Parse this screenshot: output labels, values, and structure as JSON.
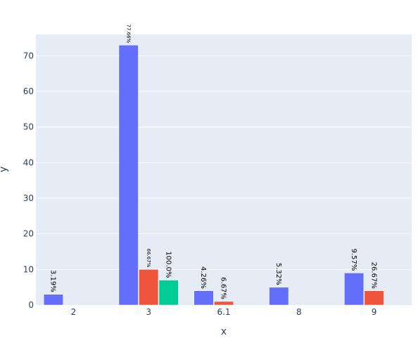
{
  "chart_data": {
    "type": "bar",
    "categories": [
      "2",
      "3",
      "6.1",
      "8",
      "9"
    ],
    "xlabel": "x",
    "ylabel": "y",
    "ylim": [
      0,
      76
    ],
    "yticks": [
      0,
      10,
      20,
      30,
      40,
      50,
      60,
      70
    ],
    "grid": true,
    "legend": "none",
    "colors": {
      "background": "#e5ecf6",
      "grid": "#ffffff",
      "text": "#2a3f5f"
    },
    "series": [
      {
        "color": "#636efa",
        "values": [
          3,
          73,
          4,
          null,
          9
        ],
        "labels": [
          "3.19%",
          "77.66%",
          "4.26%",
          null,
          "9.57%"
        ]
      },
      {
        "color": "#ef553b",
        "values": [
          null,
          10,
          1,
          null,
          4
        ],
        "labels": [
          null,
          "66.67%",
          "6.67%",
          null,
          "26.67%"
        ]
      },
      {
        "color": "#00cc96",
        "values": [
          null,
          7,
          null,
          null,
          null
        ],
        "labels": [
          null,
          "100.0%",
          null,
          null,
          null
        ]
      },
      {
        "color": "#636efa",
        "values": [
          null,
          null,
          null,
          5,
          null
        ],
        "labels": [
          null,
          null,
          null,
          "5.32%",
          null
        ]
      }
    ],
    "bar_groups": [
      [
        0,
        null,
        null
      ],
      [
        0,
        1,
        2
      ],
      [
        0,
        1,
        null
      ],
      [
        3,
        null,
        null
      ],
      [
        0,
        1,
        null
      ]
    ]
  }
}
